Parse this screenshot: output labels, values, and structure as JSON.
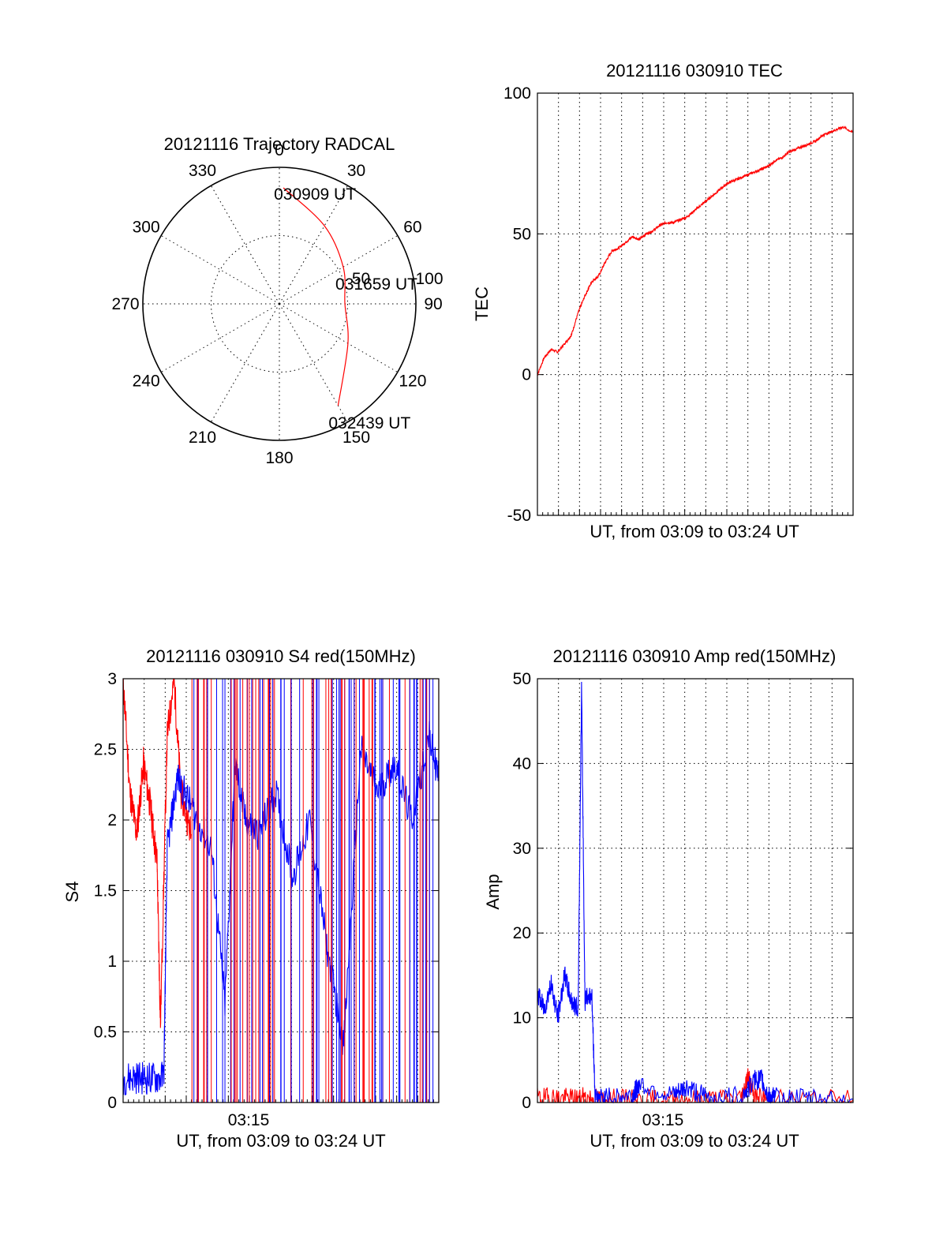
{
  "colors": {
    "red": "#ff0000",
    "blue": "#0000ff",
    "axis": "#000000"
  },
  "chart_data": [
    {
      "type": "polar",
      "title": "20121116 Trajectory RADCAL",
      "angle_labels": [
        "0",
        "30",
        "60",
        "90",
        "120",
        "150",
        "180",
        "210",
        "240",
        "270",
        "300",
        "330"
      ],
      "angles": [
        0,
        30,
        60,
        90,
        120,
        150,
        180,
        210,
        240,
        270,
        300,
        330
      ],
      "radius_labels": [
        "50",
        "100"
      ],
      "radius_values": [
        50,
        100
      ],
      "grid": true,
      "trajectory": {
        "color": "red",
        "points": [
          {
            "az": 2,
            "r": 85,
            "time": "030909 UT"
          },
          {
            "az": 30,
            "r": 66
          },
          {
            "az": 60,
            "r": 54
          },
          {
            "az": 90,
            "r": 48,
            "time": "031659 UT"
          },
          {
            "az": 120,
            "r": 58
          },
          {
            "az": 150,
            "r": 86,
            "time": "032439 UT"
          }
        ]
      }
    },
    {
      "type": "line",
      "title": "20121116 030910 TEC",
      "xlabel": "UT, from 03:09 to 03:24 UT",
      "ylabel": "TEC",
      "xlim": [
        0,
        930
      ],
      "ylim": [
        -50,
        100
      ],
      "yticks": [
        "-50",
        "0",
        "50",
        "100"
      ],
      "grid": true,
      "series": [
        {
          "color": "red",
          "x": [
            0,
            20,
            40,
            60,
            80,
            100,
            120,
            140,
            160,
            180,
            200,
            220,
            240,
            260,
            280,
            300,
            320,
            340,
            360,
            380,
            400,
            420,
            440,
            460,
            480,
            500,
            520,
            540,
            560,
            580,
            600,
            620,
            640,
            660,
            680,
            700,
            720,
            740,
            760,
            780,
            800,
            820,
            840,
            860,
            880,
            900,
            930
          ],
          "y": [
            0,
            6,
            9,
            8,
            11,
            14,
            22,
            28,
            33,
            35,
            40,
            44,
            45,
            47,
            49,
            48,
            50,
            51,
            53,
            54,
            54,
            55,
            56,
            58,
            60,
            62,
            64,
            66,
            68,
            69,
            70,
            71,
            72,
            73,
            74,
            76,
            77,
            79,
            80,
            81,
            82,
            83,
            85,
            86,
            87,
            88,
            86
          ]
        }
      ]
    },
    {
      "type": "line",
      "title": "20121116 030910 S4 red(150MHz)",
      "xlabel": "UT, from 03:09 to 03:24 UT",
      "ylabel": "S4",
      "xtick_labels": [
        "03:15"
      ],
      "xlim": [
        0,
        930
      ],
      "ylim": [
        0,
        3
      ],
      "yticks": [
        "0",
        "0.5",
        "1",
        "1.5",
        "2",
        "2.5",
        "3"
      ],
      "grid": true,
      "series": [
        {
          "color": "red",
          "x": [
            0,
            20,
            40,
            60,
            80,
            100,
            110,
            130,
            150,
            170,
            200
          ],
          "y": [
            3,
            2.2,
            1.9,
            2.4,
            2.1,
            1.7,
            0.55,
            2.6,
            3,
            2.2,
            1.9
          ]
        },
        {
          "color": "blue",
          "x": [
            0,
            40,
            80,
            120,
            130,
            160,
            200,
            260,
            300,
            330,
            360,
            400,
            450,
            500,
            550,
            600,
            650,
            700,
            750,
            800,
            850,
            900,
            930
          ],
          "y": [
            0.17,
            0.18,
            0.17,
            0.18,
            1.8,
            2.3,
            2.1,
            1.8,
            0.7,
            2.4,
            2.0,
            1.9,
            2.2,
            1.6,
            2.0,
            1.1,
            0.4,
            2.5,
            2.2,
            2.4,
            2.0,
            2.6,
            2.3
          ]
        }
      ]
    },
    {
      "type": "line",
      "title": "20121116 030910 Amp red(150MHz)",
      "xlabel": "UT, from 03:09 to 03:24 UT",
      "ylabel": "Amp",
      "xtick_labels": [
        "03:15"
      ],
      "xlim": [
        0,
        930
      ],
      "ylim": [
        0,
        50
      ],
      "yticks": [
        "0",
        "10",
        "20",
        "30",
        "40",
        "50"
      ],
      "grid": true,
      "series": [
        {
          "color": "red",
          "x": [
            0,
            50,
            100,
            150,
            200,
            300,
            400,
            500,
            600,
            620,
            640,
            700,
            930
          ],
          "y": [
            0.5,
            0.6,
            0.5,
            0.6,
            0.4,
            0.3,
            0.3,
            0.4,
            0.5,
            3.0,
            0.6,
            0.4,
            0.3
          ]
        },
        {
          "color": "blue",
          "x": [
            0,
            20,
            40,
            60,
            80,
            100,
            120,
            130,
            140,
            160,
            170,
            200,
            280,
            300,
            400,
            440,
            500,
            600,
            640,
            660,
            680,
            700,
            800,
            930
          ],
          "y": [
            13,
            11,
            14,
            10,
            15,
            12,
            11,
            49,
            12,
            13,
            0.6,
            0.5,
            0.8,
            2.2,
            0.7,
            1.8,
            0.6,
            0.7,
            2.6,
            2.8,
            0.7,
            0.6,
            0.5,
            0.4
          ]
        }
      ]
    }
  ]
}
